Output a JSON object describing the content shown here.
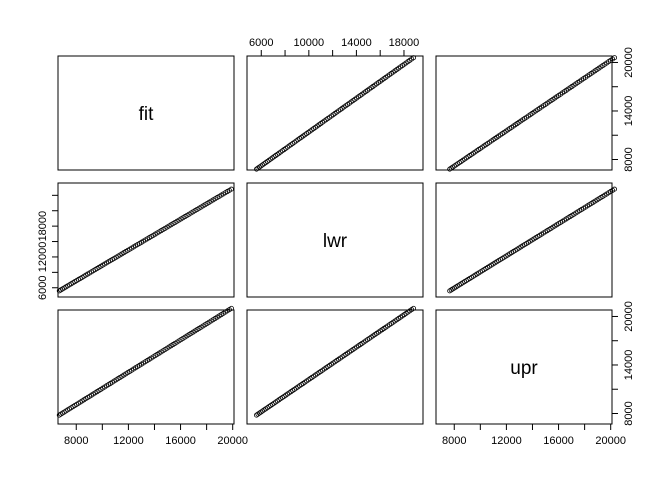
{
  "chart_data": {
    "type": "scatter",
    "subtype": "pairs-matrix",
    "variables": [
      "fit",
      "lwr",
      "upr"
    ],
    "ranges": {
      "fit": [
        6600,
        20100
      ],
      "lwr": [
        4800,
        19600
      ],
      "upr": [
        6700,
        20800
      ]
    },
    "ticks": {
      "fit": [
        8000,
        12000,
        16000,
        20000
      ],
      "lwr": [
        6000,
        10000,
        14000,
        18000
      ],
      "upr": [
        8000,
        14000,
        20000
      ]
    },
    "tick_labels": {
      "fit": [
        "8000",
        "12000",
        "16000",
        "20000"
      ],
      "lwr_top": [
        "6000",
        "10000",
        "14000",
        "18000"
      ],
      "lwr_left": [
        "6000",
        "12000",
        "18000"
      ],
      "upr": [
        "8000",
        "14000",
        "20000"
      ]
    },
    "axes": {
      "top_col1": "lwr",
      "right_row0": "upr",
      "left_row1": "lwr",
      "right_row1": "lwr",
      "bottom_col0": "fit",
      "bottom_col2": "fit",
      "right_row2": "upr"
    },
    "point_marker": "open-circle",
    "grid": false,
    "legend": "none",
    "data": {
      "fit_range": [
        6700,
        19900
      ],
      "n_points": 90,
      "lwr_offset": -1100,
      "upr_offset": 1100
    }
  }
}
